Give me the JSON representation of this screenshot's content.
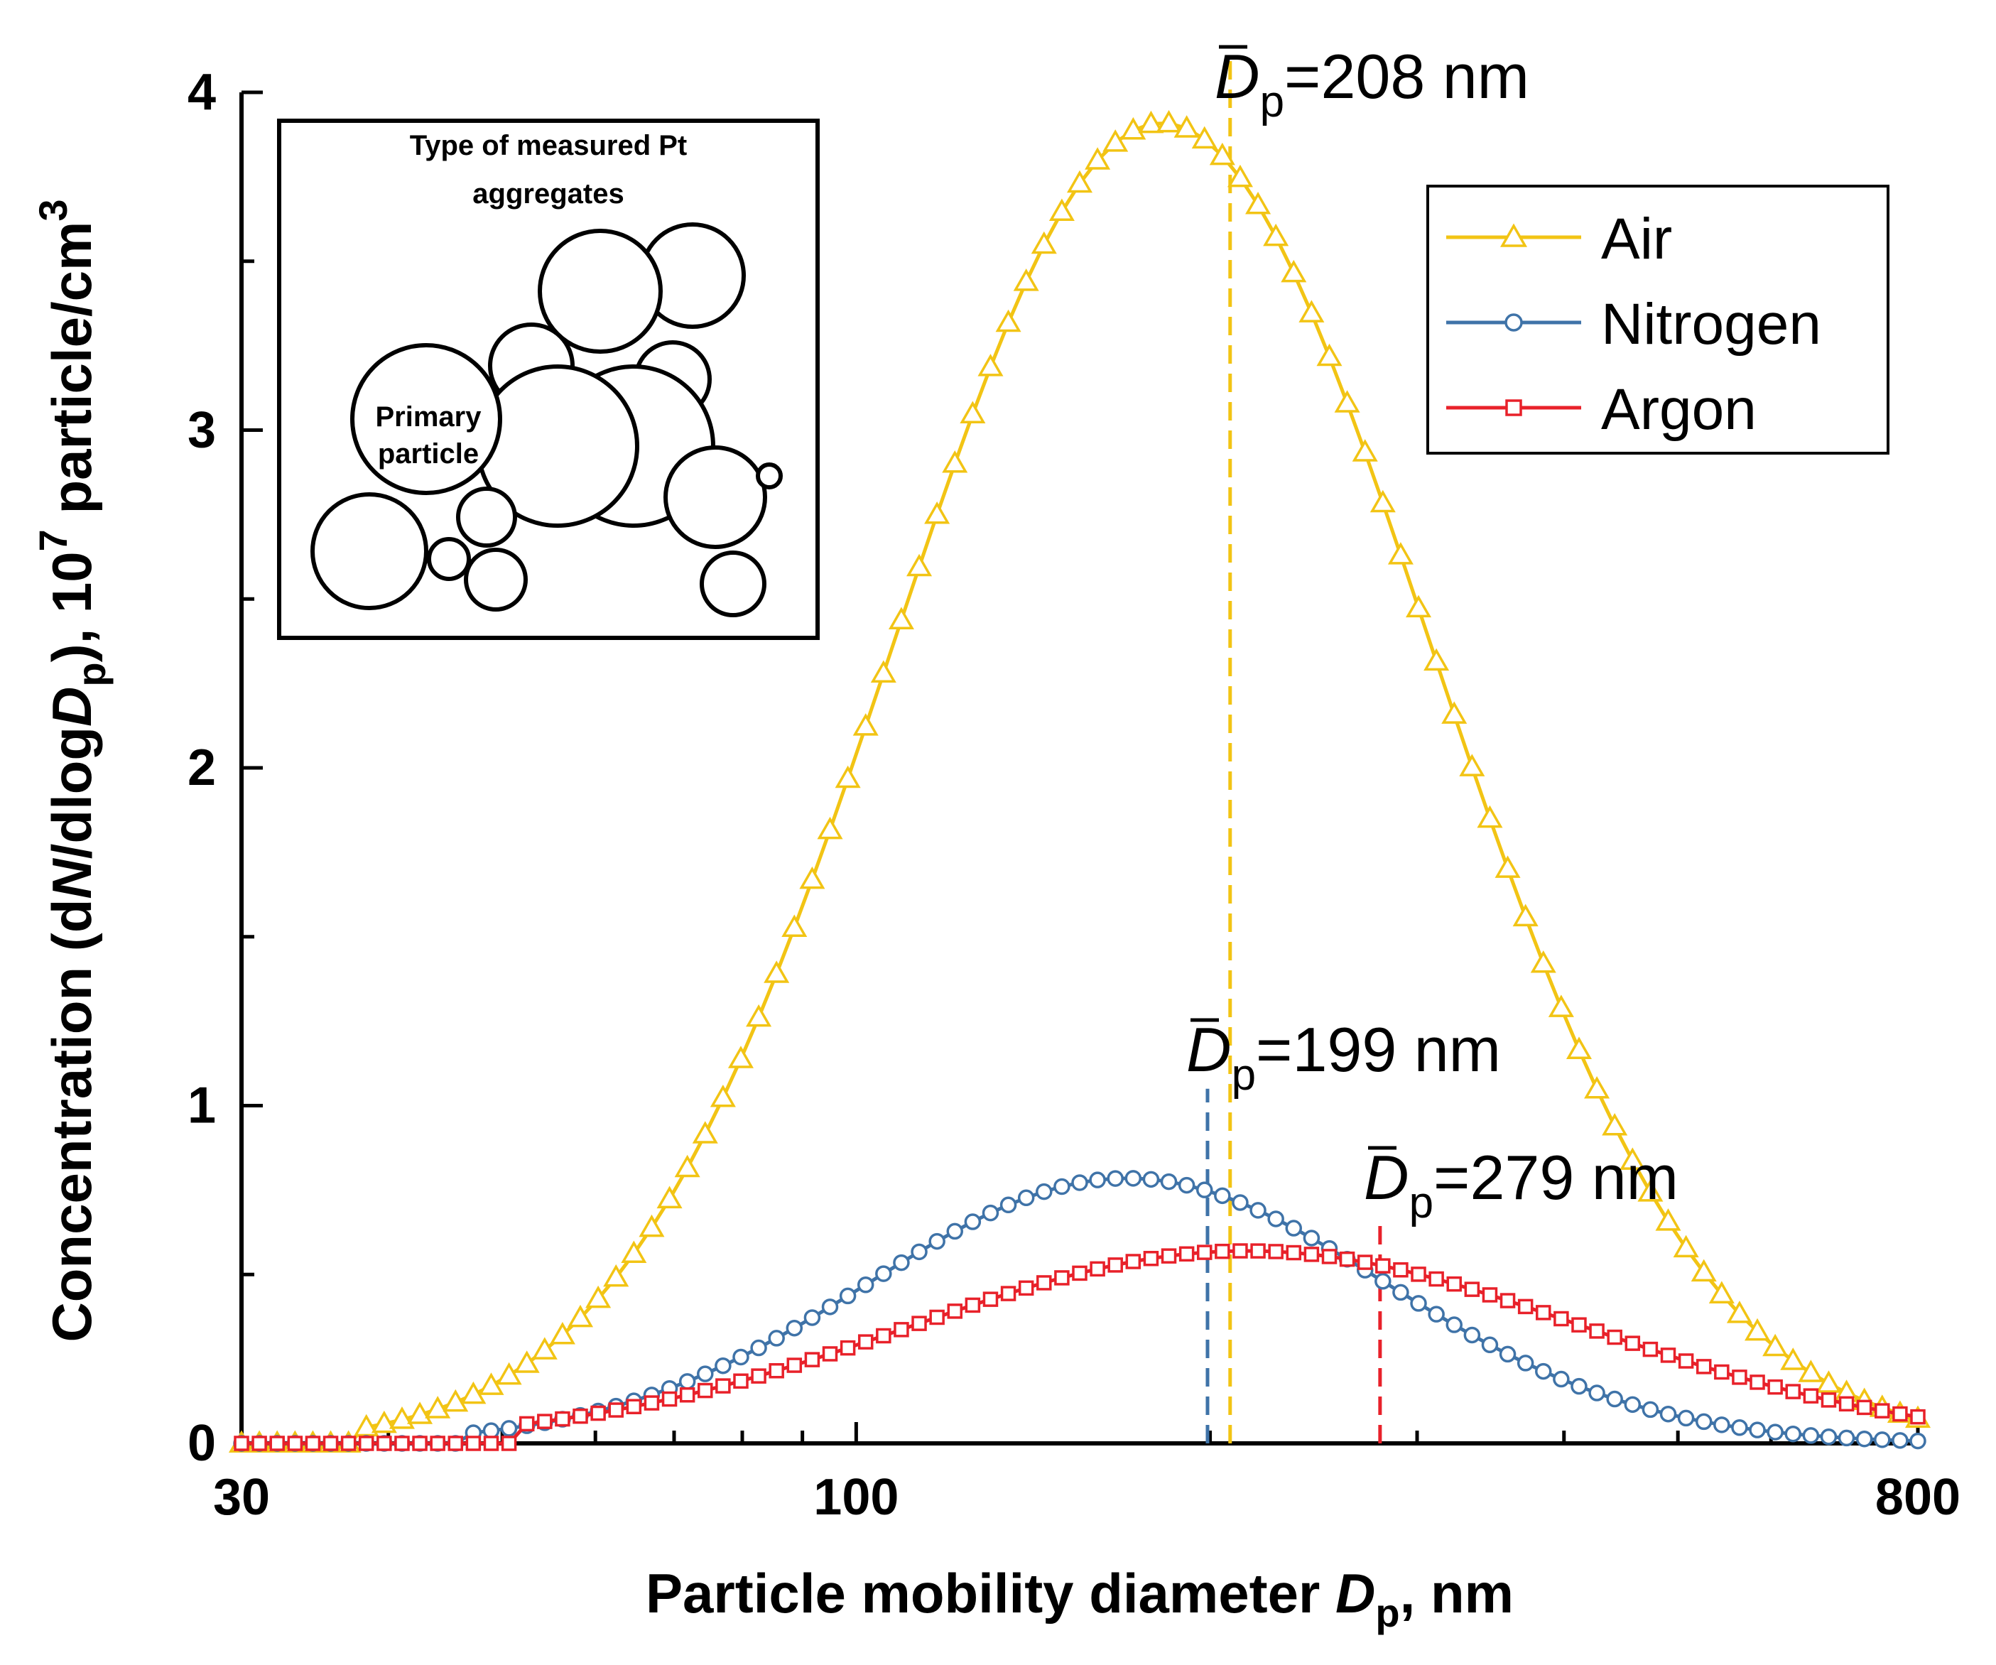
{
  "chart_data": {
    "type": "line",
    "xscale": "log",
    "xlim": [
      30,
      800
    ],
    "ylim": [
      0,
      4
    ],
    "xlabel": {
      "main": "Particle mobility diameter ",
      "var": "D",
      "sub": "p",
      "tail": ", nm"
    },
    "ylabel": {
      "a": "Concentration (d",
      "b": "N",
      "c": "/dlog",
      "d": "D",
      "e": "p",
      "f": "), 10",
      "sup1": "7",
      "g": " particle/cm",
      "sup2": "3"
    },
    "xticks": [
      {
        "value": 30,
        "label": "30"
      },
      {
        "value": 100,
        "label": "100"
      },
      {
        "value": 800,
        "label": "800"
      }
    ],
    "yticks": [
      {
        "value": 0,
        "label": "0"
      },
      {
        "value": 1,
        "label": "1"
      },
      {
        "value": 2,
        "label": "2"
      },
      {
        "value": 3,
        "label": "3"
      },
      {
        "value": 4,
        "label": "4"
      }
    ],
    "series": [
      {
        "name": "Air",
        "color": "#F2C414",
        "marker": "triangle",
        "peak_x": 182,
        "peak_y": 3.91,
        "sigma_ln": 0.525,
        "floor_x": 38,
        "n_points": 95
      },
      {
        "name": "Nitrogen",
        "color": "#3F73A8",
        "marker": "circle",
        "peak_x": 170,
        "peak_y": 0.785,
        "sigma_ln": 0.505,
        "floor_x": 46,
        "n_points": 95
      },
      {
        "name": "Argon",
        "color": "#E8212A",
        "marker": "square",
        "peak_x": 215,
        "peak_y": 0.57,
        "sigma_ln": 0.66,
        "floor_x": 52,
        "n_points": 95
      }
    ],
    "mean_markers": [
      {
        "series": "Air",
        "x": 208,
        "y_top": 4.1,
        "text_main": "D",
        "text_sub": "p",
        "text_val": "=208 nm",
        "color": "#F2C414"
      },
      {
        "series": "Nitrogen",
        "x": 199,
        "y_top": 1.05,
        "text_main": "D",
        "text_sub": "p",
        "text_val": "=199 nm",
        "color": "#3F73A8"
      },
      {
        "series": "Argon",
        "x": 279,
        "y_top": 0.65,
        "text_main": "D",
        "text_sub": "p",
        "text_val": "=279 nm",
        "color": "#E8212A"
      }
    ],
    "legend": {
      "position": "top-right",
      "entries": [
        "Air",
        "Nitrogen",
        "Argon"
      ]
    },
    "inset": {
      "title_line1": "Type of measured Pt",
      "title_line2": "aggregates",
      "label_line1": "Primary",
      "label_line2": "particle"
    }
  }
}
